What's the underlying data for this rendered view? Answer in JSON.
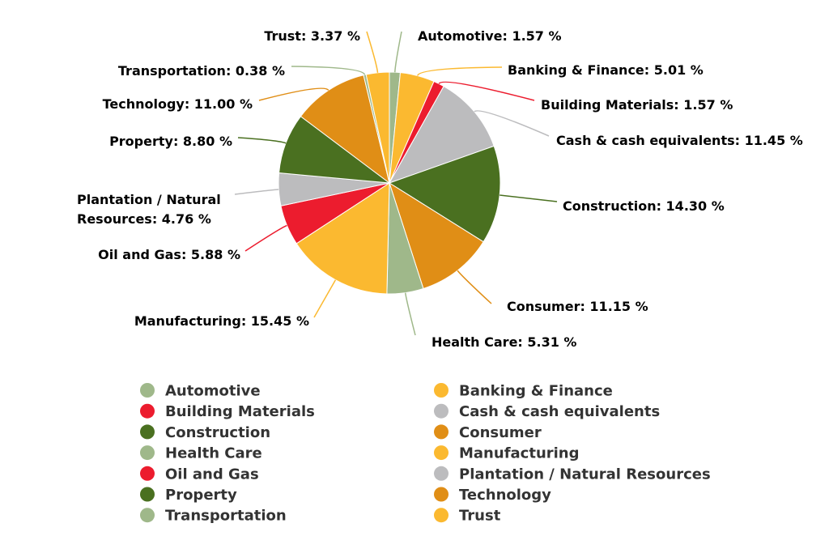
{
  "chart_data": {
    "type": "pie",
    "title": "",
    "start_angle_deg": 0,
    "direction": "clockwise",
    "label_suffix": " %",
    "slices": [
      {
        "name": "Automotive",
        "value": 1.57,
        "label": "Automotive: 1.57 %",
        "color": "#9fb88a"
      },
      {
        "name": "Banking & Finance",
        "value": 5.01,
        "label": "Banking & Finance: 5.01 %",
        "color": "#fbb930"
      },
      {
        "name": "Building Materials",
        "value": 1.57,
        "label": "Building Materials: 1.57 %",
        "color": "#ec1c2e"
      },
      {
        "name": "Cash & cash equivalents",
        "value": 11.45,
        "label": "Cash & cash equivalents: 11.45 %",
        "color": "#bcbcbe"
      },
      {
        "name": "Construction",
        "value": 14.3,
        "label": "Construction: 14.30 %",
        "color": "#4a7020"
      },
      {
        "name": "Consumer",
        "value": 11.15,
        "label": "Consumer: 11.15 %",
        "color": "#e08e16"
      },
      {
        "name": "Health Care",
        "value": 5.31,
        "label": "Health Care: 5.31 %",
        "color": "#9fb88a"
      },
      {
        "name": "Manufacturing",
        "value": 15.45,
        "label": "Manufacturing: 15.45 %",
        "color": "#fbb930"
      },
      {
        "name": "Oil and Gas",
        "value": 5.88,
        "label": "Oil and Gas: 5.88 %",
        "color": "#ec1c2e"
      },
      {
        "name": "Plantation / Natural Resources",
        "value": 4.76,
        "label_lines": [
          "Plantation / Natural",
          "Resources: 4.76 %"
        ],
        "color": "#bcbcbe"
      },
      {
        "name": "Property",
        "value": 8.8,
        "label": "Property: 8.80 %",
        "color": "#4a7020"
      },
      {
        "name": "Technology",
        "value": 11.0,
        "label": "Technology: 11.00 %",
        "color": "#e08e16"
      },
      {
        "name": "Transportation",
        "value": 0.38,
        "label": "Transportation: 0.38 %",
        "color": "#9fb88a"
      },
      {
        "name": "Trust",
        "value": 3.37,
        "label": "Trust: 3.37 %",
        "color": "#fbb930"
      }
    ],
    "legend": {
      "placement": "bottom",
      "columns": 2,
      "items": [
        "Automotive",
        "Banking & Finance",
        "Building Materials",
        "Cash & cash equivalents",
        "Construction",
        "Consumer",
        "Health Care",
        "Manufacturing",
        "Oil and Gas",
        "Plantation / Natural Resources",
        "Property",
        "Technology",
        "Transportation",
        "Trust"
      ]
    }
  }
}
